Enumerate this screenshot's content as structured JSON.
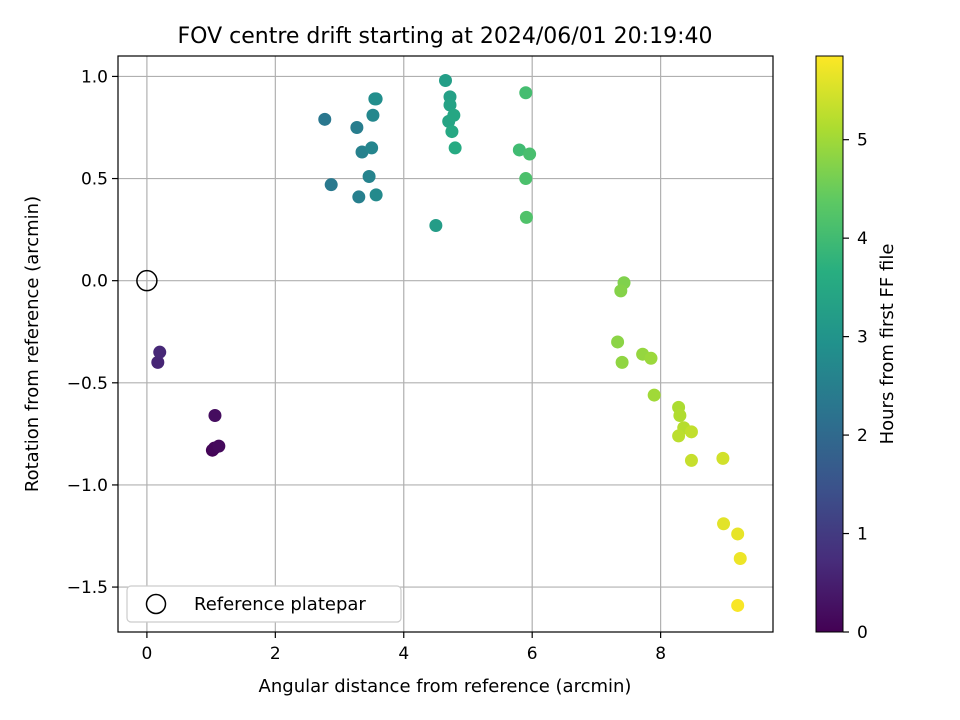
{
  "chart_data": {
    "type": "scatter",
    "title": "FOV centre drift starting at 2024/06/01 20:19:40",
    "xlabel": "Angular distance from reference (arcmin)",
    "ylabel": "Rotation from reference (arcmin)",
    "xlim": [
      -0.45,
      9.75
    ],
    "ylim": [
      -1.72,
      1.1
    ],
    "x_ticks": [
      0,
      2,
      4,
      6,
      8
    ],
    "y_ticks": [
      -1.5,
      -1.0,
      -0.5,
      0.0,
      0.5,
      1.0
    ],
    "x_tick_labels": [
      "0",
      "2",
      "4",
      "6",
      "8"
    ],
    "y_tick_labels": [
      "−1.5",
      "−1.0",
      "−0.5",
      "0.0",
      "0.5",
      "1.0"
    ],
    "grid": true,
    "legend": {
      "position": "lower-left",
      "entries": [
        "Reference platepar"
      ]
    },
    "colorbar": {
      "label": "Hours from first FF file",
      "colormap": "viridis",
      "range": [
        0,
        5.85
      ],
      "ticks": [
        0,
        1,
        2,
        3,
        4,
        5
      ],
      "tick_labels": [
        "0",
        "1",
        "2",
        "3",
        "4",
        "5"
      ]
    },
    "reference_point": {
      "x": 0,
      "y": 0,
      "name": "Reference platepar"
    },
    "points": [
      {
        "x": 1.02,
        "y": -0.83,
        "c": 0.05
      },
      {
        "x": 1.05,
        "y": -0.82,
        "c": 0.1
      },
      {
        "x": 1.12,
        "y": -0.81,
        "c": 0.15
      },
      {
        "x": 1.06,
        "y": -0.66,
        "c": 0.2
      },
      {
        "x": 0.17,
        "y": -0.4,
        "c": 0.6
      },
      {
        "x": 0.2,
        "y": -0.35,
        "c": 0.65
      },
      {
        "x": 2.77,
        "y": 0.79,
        "c": 2.3
      },
      {
        "x": 2.87,
        "y": 0.47,
        "c": 2.35
      },
      {
        "x": 3.27,
        "y": 0.75,
        "c": 2.45
      },
      {
        "x": 3.3,
        "y": 0.41,
        "c": 2.5
      },
      {
        "x": 3.35,
        "y": 0.63,
        "c": 2.55
      },
      {
        "x": 3.46,
        "y": 0.51,
        "c": 2.6
      },
      {
        "x": 3.5,
        "y": 0.65,
        "c": 2.65
      },
      {
        "x": 3.52,
        "y": 0.81,
        "c": 2.7
      },
      {
        "x": 3.57,
        "y": 0.42,
        "c": 2.75
      },
      {
        "x": 3.55,
        "y": 0.89,
        "c": 2.8
      },
      {
        "x": 3.57,
        "y": 0.89,
        "c": 2.85
      },
      {
        "x": 4.5,
        "y": 0.27,
        "c": 3.2
      },
      {
        "x": 4.65,
        "y": 0.98,
        "c": 3.25
      },
      {
        "x": 4.72,
        "y": 0.9,
        "c": 3.3
      },
      {
        "x": 4.72,
        "y": 0.86,
        "c": 3.35
      },
      {
        "x": 4.7,
        "y": 0.78,
        "c": 3.4
      },
      {
        "x": 4.78,
        "y": 0.81,
        "c": 3.45
      },
      {
        "x": 4.75,
        "y": 0.73,
        "c": 3.5
      },
      {
        "x": 4.8,
        "y": 0.65,
        "c": 3.55
      },
      {
        "x": 5.8,
        "y": 0.64,
        "c": 4.0
      },
      {
        "x": 5.9,
        "y": 0.92,
        "c": 4.05
      },
      {
        "x": 5.96,
        "y": 0.62,
        "c": 4.1
      },
      {
        "x": 5.9,
        "y": 0.5,
        "c": 4.15
      },
      {
        "x": 5.91,
        "y": 0.31,
        "c": 4.2
      },
      {
        "x": 7.43,
        "y": -0.01,
        "c": 4.7
      },
      {
        "x": 7.38,
        "y": -0.05,
        "c": 4.75
      },
      {
        "x": 7.33,
        "y": -0.3,
        "c": 4.8
      },
      {
        "x": 7.4,
        "y": -0.4,
        "c": 4.85
      },
      {
        "x": 7.72,
        "y": -0.36,
        "c": 4.9
      },
      {
        "x": 7.85,
        "y": -0.38,
        "c": 4.95
      },
      {
        "x": 7.9,
        "y": -0.56,
        "c": 5.0
      },
      {
        "x": 8.28,
        "y": -0.62,
        "c": 5.1
      },
      {
        "x": 8.3,
        "y": -0.66,
        "c": 5.15
      },
      {
        "x": 8.36,
        "y": -0.72,
        "c": 5.2
      },
      {
        "x": 8.28,
        "y": -0.76,
        "c": 5.25
      },
      {
        "x": 8.48,
        "y": -0.74,
        "c": 5.3
      },
      {
        "x": 8.48,
        "y": -0.88,
        "c": 5.35
      },
      {
        "x": 8.97,
        "y": -0.87,
        "c": 5.45
      },
      {
        "x": 8.98,
        "y": -1.19,
        "c": 5.6
      },
      {
        "x": 9.2,
        "y": -1.24,
        "c": 5.65
      },
      {
        "x": 9.24,
        "y": -1.36,
        "c": 5.7
      },
      {
        "x": 9.2,
        "y": -1.59,
        "c": 5.8
      }
    ]
  }
}
